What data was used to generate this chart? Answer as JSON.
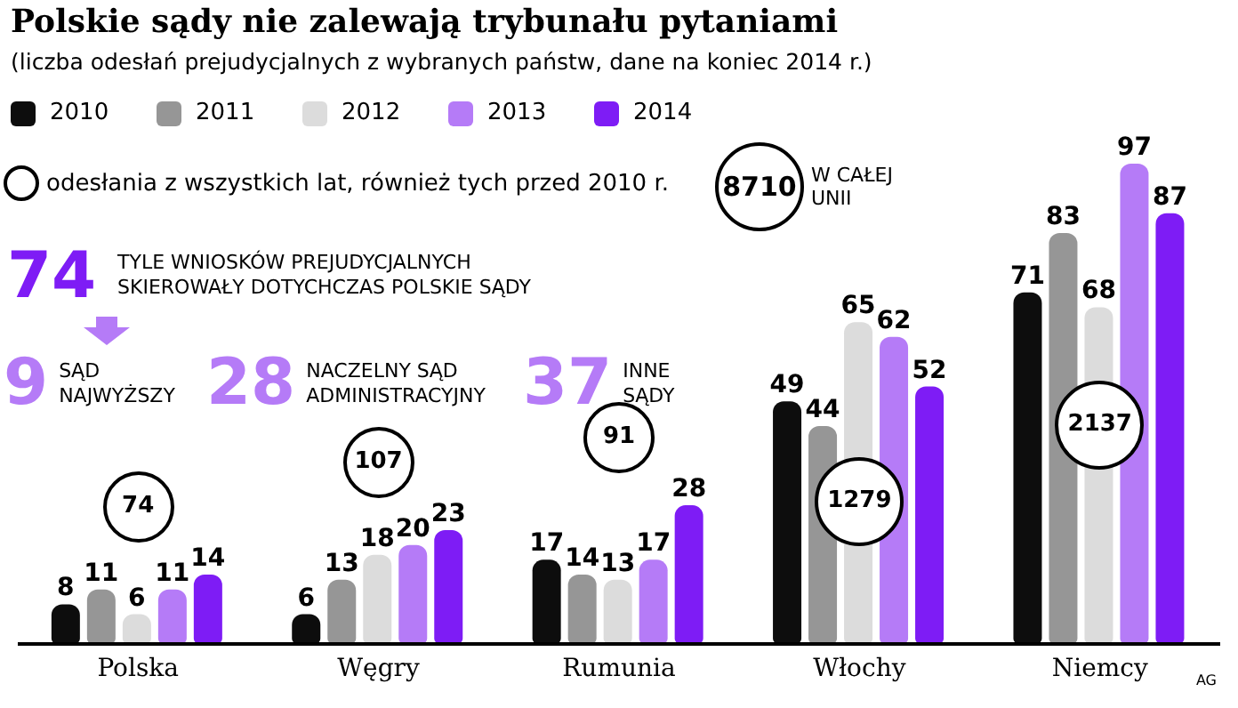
{
  "chart_data": {
    "type": "bar",
    "title": "Polskie sądy nie zalewają trybunału pytaniami",
    "subtitle": "(liczba odesłań prejudycjalnych z wybranych państw, dane na koniec 2014 r.)",
    "categories": [
      "Polska",
      "Węgry",
      "Rumunia",
      "Włochy",
      "Niemcy"
    ],
    "series": [
      {
        "name": "2010",
        "color": "#0d0d0d",
        "values": [
          8,
          6,
          17,
          49,
          71
        ]
      },
      {
        "name": "2011",
        "color": "#969696",
        "values": [
          11,
          13,
          14,
          44,
          83
        ]
      },
      {
        "name": "2012",
        "color": "#dcdcdc",
        "values": [
          6,
          18,
          13,
          65,
          68
        ]
      },
      {
        "name": "2013",
        "color": "#b57bf7",
        "values": [
          11,
          20,
          17,
          62,
          97
        ]
      },
      {
        "name": "2014",
        "color": "#7e1cf5",
        "values": [
          14,
          23,
          28,
          52,
          87
        ]
      }
    ],
    "data_labels": true,
    "legend": "top left",
    "annotations": [
      "odesłania z wszystkich lat, również tych przed 2010 r.",
      "8710",
      "W CAŁEJ UNII",
      "74",
      "TYLE WNIOSKÓW PREJUDYCJALNYCH SKIEROWAŁY DOTYCHCZAS POLSKIE SĄDY",
      "9",
      "SĄD NAJWYŻSZY",
      "28",
      "NACZELNY SĄD ADMINISTRACYJNY",
      "37",
      "INNE SĄDY",
      "74",
      "107",
      "91",
      "1279",
      "2137",
      "AG"
    ]
  }
}
